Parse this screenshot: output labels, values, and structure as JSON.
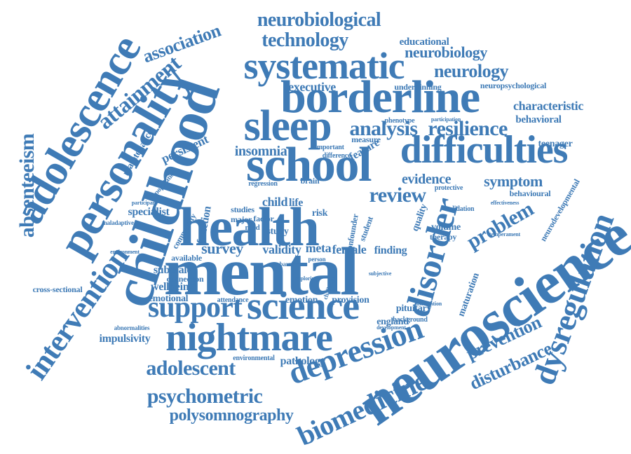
{
  "words": [
    "mental",
    "health",
    "school",
    "childhood",
    "personality",
    "adolescence",
    "neuroscience",
    "borderline",
    "difficulties",
    "sleep",
    "systematic",
    "nightmare",
    "science",
    "support",
    "depression",
    "disorder",
    "dysregulation",
    "intervention",
    "absenteeism",
    "biomedicine",
    "attainment",
    "association",
    "neurobiological",
    "technology",
    "educational",
    "neurobiology",
    "neurology",
    "executive",
    "analysis",
    "resilience",
    "characteristic",
    "behavioral",
    "review",
    "problem",
    "evidence",
    "symptom",
    "insomnia",
    "persistent",
    "maintenance",
    "specialist",
    "survey",
    "validity",
    "meta",
    "female",
    "finding",
    "child",
    "wellbeing",
    "emotional",
    "subscale",
    "connection",
    "impulsivity",
    "adolescent",
    "psychometric",
    "polysomnography",
    "pathology",
    "england",
    "pituitary",
    "provision",
    "emotion",
    "prevention",
    "disturbance",
    "cross-sectional",
    "neuropsychological",
    "teenager",
    "behavioural",
    "neurodevelopmental",
    "maturation",
    "therapy",
    "volume",
    "quality",
    "function",
    "community",
    "available",
    "phenotype",
    "underpinning",
    "important",
    "difference",
    "feature",
    "measure",
    "factor",
    "major",
    "need",
    "studies",
    "risk",
    "life",
    "brain",
    "study",
    "attendance",
    "regression",
    "protective",
    "validation",
    "effectiveness",
    "temperament",
    "background",
    "development",
    "environmental",
    "abnormalities",
    "maladaptive",
    "participant",
    "population",
    "student",
    "confounder",
    "participation",
    "medication",
    "exploring",
    "subjective",
    "challenge",
    "barrier",
    "person",
    "environment"
  ]
}
